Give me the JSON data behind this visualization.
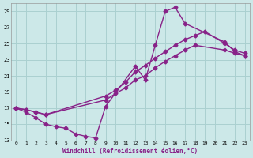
{
  "xlabel": "Windchill (Refroidissement éolien,°C)",
  "ylabel": "",
  "bg_color": "#cce8e8",
  "grid_color": "#aad0d0",
  "line_color": "#882288",
  "xlim": [
    -0.5,
    23.5
  ],
  "ylim": [
    13,
    30
  ],
  "xticks": [
    0,
    1,
    2,
    3,
    4,
    5,
    6,
    7,
    8,
    9,
    10,
    11,
    12,
    13,
    14,
    15,
    16,
    17,
    18,
    19,
    20,
    21,
    22,
    23
  ],
  "yticks": [
    13,
    15,
    17,
    19,
    21,
    23,
    25,
    27,
    29
  ],
  "line1_x": [
    0,
    1,
    2,
    3,
    4,
    5,
    6,
    7,
    8,
    9,
    12,
    13,
    14,
    15,
    16,
    17,
    21,
    22,
    23
  ],
  "line1_y": [
    17,
    16.5,
    15.8,
    15.0,
    14.7,
    14.5,
    13.8,
    13.5,
    13.3,
    17.2,
    22.2,
    20.5,
    24.8,
    29.0,
    29.5,
    27.5,
    25.2,
    24.0,
    23.5
  ],
  "line2_x": [
    0,
    1,
    2,
    3,
    9,
    10,
    11,
    12,
    13,
    14,
    15,
    16,
    17,
    18,
    19,
    21,
    22,
    23
  ],
  "line2_y": [
    17,
    16.8,
    16.5,
    16.2,
    18.5,
    19.2,
    20.2,
    21.5,
    22.3,
    23.2,
    24.0,
    24.8,
    25.5,
    26.0,
    26.5,
    25.0,
    24.2,
    23.8
  ],
  "line3_x": [
    0,
    1,
    2,
    3,
    9,
    10,
    11,
    12,
    13,
    14,
    15,
    16,
    17,
    18,
    21,
    22,
    23
  ],
  "line3_y": [
    17,
    16.8,
    16.5,
    16.2,
    18.0,
    18.8,
    19.5,
    20.5,
    21.0,
    22.0,
    22.8,
    23.5,
    24.2,
    24.8,
    24.2,
    23.8,
    23.5
  ],
  "marker": "D",
  "markersize": 2.5,
  "linewidth": 1.0
}
